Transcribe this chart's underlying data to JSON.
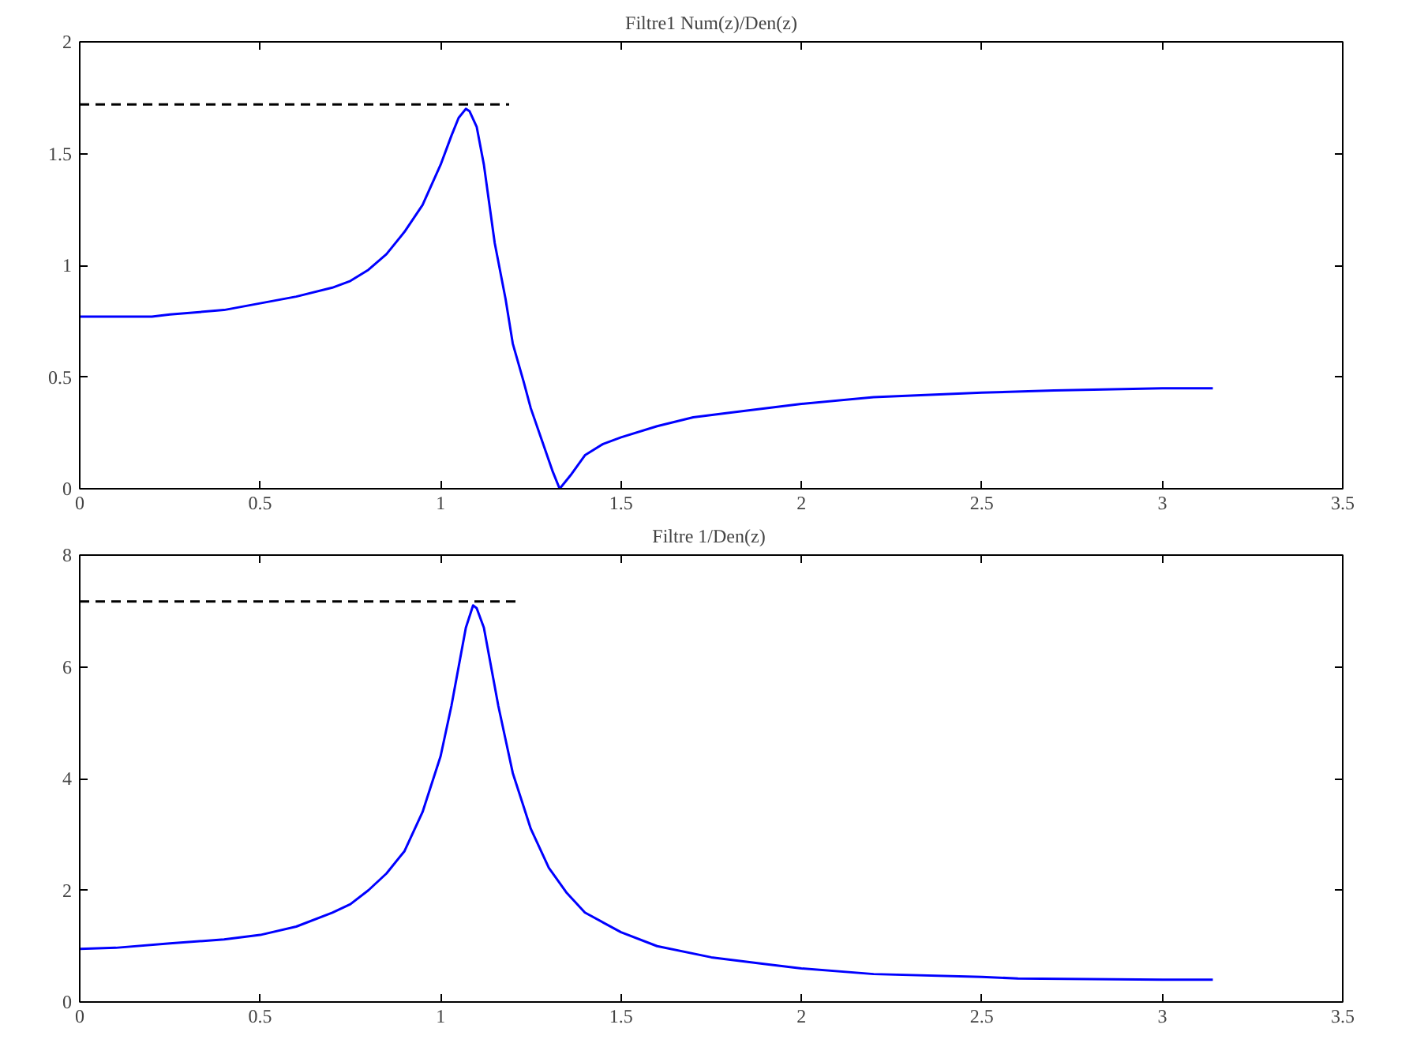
{
  "chart_data": [
    {
      "type": "line",
      "title": "Filtre1 Num(z)/Den(z)",
      "xlim": [
        0,
        3.5
      ],
      "ylim": [
        0,
        2
      ],
      "xticks": [
        0,
        0.5,
        1,
        1.5,
        2,
        2.5,
        3,
        3.5
      ],
      "yticks": [
        0,
        0.5,
        1,
        1.5,
        2
      ],
      "grid": false,
      "series": [
        {
          "color": "#0000ff",
          "line_style": "solid",
          "x": [
            0,
            0.2,
            0.25,
            0.4,
            0.5,
            0.6,
            0.7,
            0.75,
            0.8,
            0.85,
            0.9,
            0.95,
            1.0,
            1.03,
            1.05,
            1.07,
            1.08,
            1.1,
            1.12,
            1.15,
            1.18,
            1.2,
            1.23,
            1.25,
            1.28,
            1.31,
            1.33,
            1.36,
            1.4,
            1.45,
            1.5,
            1.6,
            1.7,
            1.8,
            2.0,
            2.2,
            2.5,
            2.7,
            3.0,
            3.14
          ],
          "values": [
            0.77,
            0.77,
            0.78,
            0.8,
            0.83,
            0.86,
            0.9,
            0.93,
            0.98,
            1.05,
            1.15,
            1.27,
            1.45,
            1.58,
            1.66,
            1.7,
            1.69,
            1.62,
            1.45,
            1.1,
            0.85,
            0.65,
            0.48,
            0.36,
            0.22,
            0.08,
            0.0,
            0.06,
            0.15,
            0.2,
            0.23,
            0.28,
            0.32,
            0.34,
            0.38,
            0.41,
            0.43,
            0.44,
            0.45,
            0.45
          ]
        },
        {
          "type": "line",
          "color": "#000000",
          "line_style": "dashed",
          "x": [
            0,
            1.19
          ],
          "values": [
            1.72,
            1.72
          ]
        }
      ]
    },
    {
      "type": "line",
      "title": "Filtre  1/Den(z)",
      "xlim": [
        0,
        3.5
      ],
      "ylim": [
        0,
        8
      ],
      "xticks": [
        0,
        0.5,
        1,
        1.5,
        2,
        2.5,
        3,
        3.5
      ],
      "yticks": [
        0,
        2,
        4,
        6,
        8
      ],
      "grid": false,
      "series": [
        {
          "color": "#0000ff",
          "line_style": "solid",
          "x": [
            0,
            0.1,
            0.25,
            0.4,
            0.5,
            0.6,
            0.7,
            0.75,
            0.8,
            0.85,
            0.9,
            0.95,
            1.0,
            1.03,
            1.05,
            1.07,
            1.09,
            1.1,
            1.12,
            1.14,
            1.16,
            1.18,
            1.2,
            1.25,
            1.3,
            1.35,
            1.4,
            1.5,
            1.6,
            1.75,
            1.9,
            2.0,
            2.2,
            2.5,
            2.6,
            3.0,
            3.14
          ],
          "values": [
            0.95,
            0.97,
            1.05,
            1.12,
            1.2,
            1.35,
            1.6,
            1.75,
            2.0,
            2.3,
            2.7,
            3.4,
            4.4,
            5.3,
            6.0,
            6.7,
            7.1,
            7.05,
            6.7,
            6.0,
            5.3,
            4.7,
            4.1,
            3.1,
            2.4,
            1.95,
            1.6,
            1.25,
            1.0,
            0.8,
            0.68,
            0.6,
            0.5,
            0.45,
            0.42,
            0.4,
            0.4
          ]
        },
        {
          "type": "line",
          "color": "#000000",
          "line_style": "dashed",
          "x": [
            0,
            1.21
          ],
          "values": [
            7.17,
            7.17
          ]
        }
      ]
    }
  ]
}
